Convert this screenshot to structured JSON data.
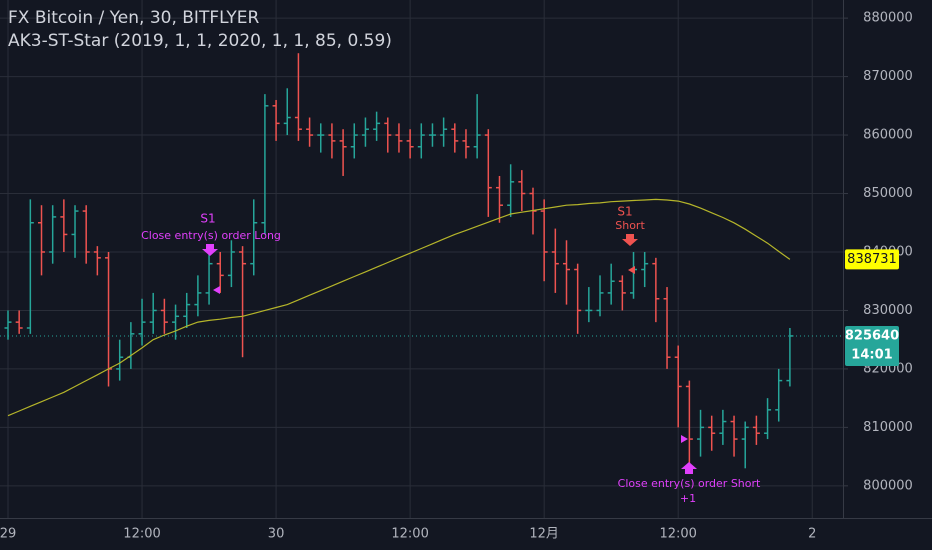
{
  "chart_data": {
    "type": "ohlc",
    "title": "FX Bitcoin / Yen, 30, BITFLYER",
    "subtitle": "AK3-ST-Star (2019, 1, 1, 2020, 1, 1, 85, 0.59)",
    "categories": [
      "29",
      null,
      null,
      null,
      null,
      null,
      null,
      null,
      null,
      null,
      null,
      null,
      "12:00",
      null,
      null,
      null,
      null,
      null,
      null,
      null,
      null,
      null,
      null,
      null,
      "30",
      null,
      null,
      null,
      null,
      null,
      null,
      null,
      null,
      null,
      null,
      null,
      "12:00",
      null,
      null,
      null,
      null,
      null,
      null,
      null,
      null,
      null,
      null,
      null,
      "12月",
      null,
      null,
      null,
      null,
      null,
      null,
      null,
      null,
      null,
      null,
      null,
      "12:00",
      null,
      null,
      null,
      null,
      null,
      null,
      null,
      null,
      null,
      null,
      null,
      "2"
    ],
    "open": [
      827000,
      828000,
      827000,
      845000,
      840000,
      846000,
      843000,
      847000,
      840000,
      839000,
      820000,
      822000,
      826000,
      828000,
      830000,
      828000,
      829000,
      831000,
      833000,
      838000,
      836000,
      840000,
      838000,
      845000,
      865000,
      862000,
      863000,
      861000,
      860000,
      860000,
      859000,
      858000,
      860000,
      861000,
      862000,
      860000,
      859000,
      858000,
      860000,
      860000,
      861000,
      859000,
      858000,
      860000,
      851000,
      848000,
      852000,
      850000,
      847000,
      840000,
      838000,
      837000,
      830000,
      830000,
      833000,
      835000,
      833000,
      837000,
      838000,
      832000,
      822000,
      817000,
      808000,
      810000,
      809000,
      811000,
      808000,
      810000,
      809000,
      813000,
      818000,
      null,
      null
    ],
    "high": [
      830000,
      830000,
      849000,
      848000,
      848000,
      849000,
      848000,
      848000,
      841000,
      840000,
      825000,
      828000,
      832000,
      833000,
      832000,
      831000,
      833000,
      836000,
      840000,
      840000,
      842000,
      841000,
      849000,
      867000,
      866000,
      868000,
      874000,
      863000,
      862000,
      862000,
      861000,
      862000,
      863000,
      864000,
      863000,
      862000,
      861000,
      862000,
      862000,
      863000,
      862000,
      861000,
      867000,
      861000,
      853000,
      855000,
      854000,
      851000,
      849000,
      844000,
      842000,
      838000,
      834000,
      836000,
      838000,
      836000,
      840000,
      840000,
      839000,
      834000,
      824000,
      818000,
      813000,
      812000,
      813000,
      812000,
      811000,
      812000,
      815000,
      820000,
      827000,
      null,
      null
    ],
    "low": [
      825000,
      826000,
      826000,
      836000,
      838000,
      840000,
      839000,
      838000,
      836000,
      817000,
      818000,
      820000,
      824000,
      826000,
      826000,
      825000,
      827000,
      829000,
      831000,
      833000,
      834000,
      822000,
      836000,
      843000,
      859000,
      860000,
      859000,
      858000,
      857000,
      856000,
      853000,
      856000,
      858000,
      859000,
      857000,
      857000,
      856000,
      856000,
      858000,
      858000,
      857000,
      856000,
      856000,
      846000,
      845000,
      846000,
      847000,
      843000,
      835000,
      833000,
      831000,
      826000,
      828000,
      829000,
      831000,
      830000,
      832000,
      834000,
      828000,
      820000,
      810000,
      803000,
      805000,
      806000,
      807000,
      805000,
      803000,
      807000,
      808000,
      811000,
      817000,
      null,
      null
    ],
    "close": [
      828000,
      827000,
      845000,
      840000,
      846000,
      843000,
      847000,
      840000,
      839000,
      820000,
      822000,
      826000,
      828000,
      830000,
      828000,
      829000,
      831000,
      833000,
      838000,
      836000,
      840000,
      838000,
      845000,
      865000,
      862000,
      863000,
      861000,
      860000,
      860000,
      859000,
      858000,
      860000,
      861000,
      862000,
      860000,
      859000,
      858000,
      860000,
      860000,
      861000,
      859000,
      858000,
      860000,
      851000,
      848000,
      852000,
      850000,
      847000,
      840000,
      838000,
      837000,
      830000,
      830000,
      833000,
      835000,
      833000,
      837000,
      838000,
      832000,
      822000,
      817000,
      808000,
      810000,
      809000,
      811000,
      808000,
      810000,
      809000,
      813000,
      818000,
      825640,
      null,
      null
    ],
    "up_color": "#26a69a",
    "down_color": "#ef5350",
    "ma_values": [
      812000,
      812800,
      813600,
      814400,
      815200,
      816000,
      817000,
      818000,
      819000,
      820000,
      821000,
      822300,
      823600,
      825000,
      825800,
      826500,
      827300,
      828000,
      828300,
      828500,
      828800,
      829000,
      829500,
      830000,
      830500,
      831000,
      831800,
      832600,
      833400,
      834200,
      835000,
      835800,
      836600,
      837400,
      838200,
      839000,
      839800,
      840600,
      841400,
      842200,
      843000,
      843700,
      844400,
      845100,
      845800,
      846500,
      846800,
      847100,
      847400,
      847700,
      848000,
      848100,
      848300,
      848400,
      848600,
      848700,
      848800,
      848900,
      849000,
      848900,
      848700,
      848200,
      847500,
      846700,
      845900,
      845000,
      843900,
      842700,
      841500,
      840100,
      838731,
      null,
      null
    ],
    "ma_color": "#b5b52a",
    "ylim": [
      794500,
      883100
    ],
    "yticks": [
      800000,
      810000,
      820000,
      830000,
      840000,
      850000,
      860000,
      870000,
      880000
    ],
    "grid": true,
    "countdown": "14:01",
    "annotations": [
      "S1",
      "Close entry(s) order Long",
      "S1",
      "Short",
      "Close entry(s) order Short",
      "+1"
    ]
  }
}
